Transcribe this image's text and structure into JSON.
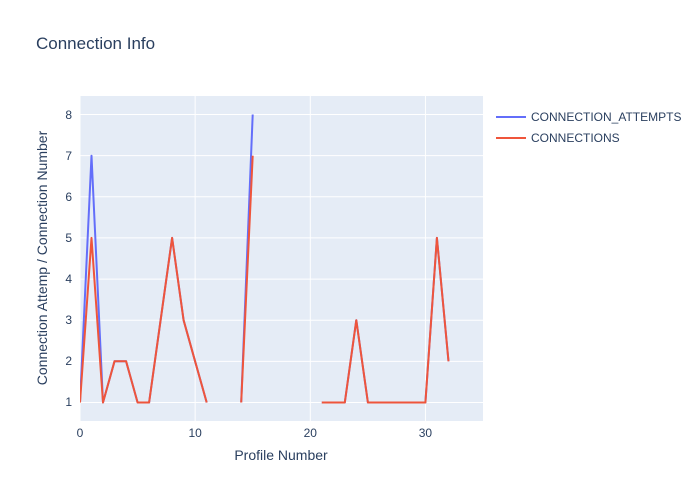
{
  "chart_data": {
    "type": "line",
    "title": "Connection Info",
    "xlabel": "Profile Number",
    "ylabel": "Connection Attemp / Connection Number",
    "xlim": [
      0,
      35
    ],
    "ylim": [
      0.55,
      8.45
    ],
    "xticks": [
      0,
      10,
      20,
      30
    ],
    "yticks": [
      1,
      2,
      3,
      4,
      5,
      6,
      7,
      8
    ],
    "grid": true,
    "legend_position": "right",
    "plot_bg": "#e5ecf6",
    "grid_color": "#ffffff",
    "text_color": "#2a3f5f",
    "series": [
      {
        "name": "CONNECTION_ATTEMPTS",
        "color": "#636efa",
        "segments": [
          [
            [
              0,
              1
            ],
            [
              1,
              7
            ],
            [
              2,
              1
            ],
            [
              3,
              2
            ],
            [
              4,
              2
            ],
            [
              5,
              1
            ],
            [
              6,
              1
            ],
            [
              7,
              3
            ],
            [
              8,
              5
            ],
            [
              9,
              3
            ],
            [
              10,
              2
            ],
            [
              11,
              1
            ]
          ],
          [
            [
              14,
              1
            ],
            [
              15,
              8
            ]
          ],
          [
            [
              21,
              1
            ],
            [
              22,
              1
            ],
            [
              23,
              1
            ],
            [
              24,
              3
            ],
            [
              25,
              1
            ],
            [
              26,
              1
            ],
            [
              27,
              1
            ],
            [
              28,
              1
            ],
            [
              29,
              1
            ],
            [
              30,
              1
            ],
            [
              31,
              5
            ],
            [
              32,
              2
            ]
          ]
        ]
      },
      {
        "name": "CONNECTIONS",
        "color": "#ef553b",
        "segments": [
          [
            [
              0,
              1
            ],
            [
              1,
              5
            ],
            [
              2,
              1
            ],
            [
              3,
              2
            ],
            [
              4,
              2
            ],
            [
              5,
              1
            ],
            [
              6,
              1
            ],
            [
              7,
              3
            ],
            [
              8,
              5
            ],
            [
              9,
              3
            ],
            [
              10,
              2
            ],
            [
              11,
              1
            ]
          ],
          [
            [
              14,
              1
            ],
            [
              15,
              7
            ]
          ],
          [
            [
              21,
              1
            ],
            [
              22,
              1
            ],
            [
              23,
              1
            ],
            [
              24,
              3
            ],
            [
              25,
              1
            ],
            [
              26,
              1
            ],
            [
              27,
              1
            ],
            [
              28,
              1
            ],
            [
              29,
              1
            ],
            [
              30,
              1
            ],
            [
              31,
              5
            ],
            [
              32,
              2
            ]
          ]
        ]
      }
    ]
  }
}
